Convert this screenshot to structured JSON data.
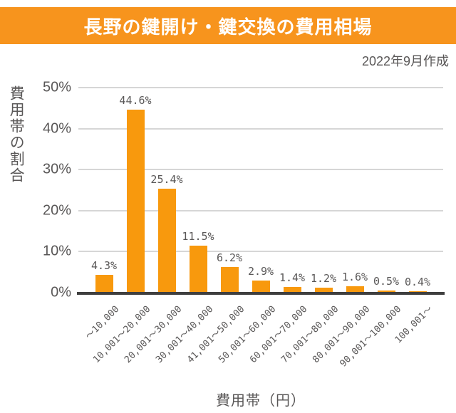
{
  "header": {
    "title": "長野の鍵開け・鍵交換の費用相場",
    "bg_color": "#F7941D",
    "text_color": "#FFFFFF"
  },
  "meta": {
    "created_label": "2022年9月作成"
  },
  "chart_data": {
    "type": "bar",
    "title": "長野の鍵開け・鍵交換の費用相場",
    "subtitle": "2022年9月作成",
    "categories": [
      "～10,000",
      "10,001～20,000",
      "20,001～30,000",
      "30,001～40,000",
      "41,001～50,000",
      "50,001～60,000",
      "60,001～70,000",
      "70,001～80,000",
      "80,001～90,000",
      "90,001～100,000",
      "100,001～"
    ],
    "values": [
      4.3,
      44.6,
      25.4,
      11.5,
      6.2,
      2.9,
      1.4,
      1.2,
      1.6,
      0.5,
      0.4
    ],
    "value_labels": [
      "4.3%",
      "44.6%",
      "25.4%",
      "11.5%",
      "6.2%",
      "2.9%",
      "1.4%",
      "1.2%",
      "1.6%",
      "0.5%",
      "0.4%"
    ],
    "xlabel": "費用帯（円）",
    "ylabel": "費用帯の割合",
    "ylim": [
      0,
      50
    ],
    "y_ticks": [
      "0%",
      "10%",
      "20%",
      "30%",
      "40%",
      "50%"
    ],
    "grid": "horizontal gridlines every 10%",
    "legend": "none",
    "bar_color": "#F8990D",
    "colors": {
      "banner": "#F7941D",
      "grid": "#D6D6D6",
      "axis": "#3F3F3F",
      "text": "#595757"
    }
  }
}
